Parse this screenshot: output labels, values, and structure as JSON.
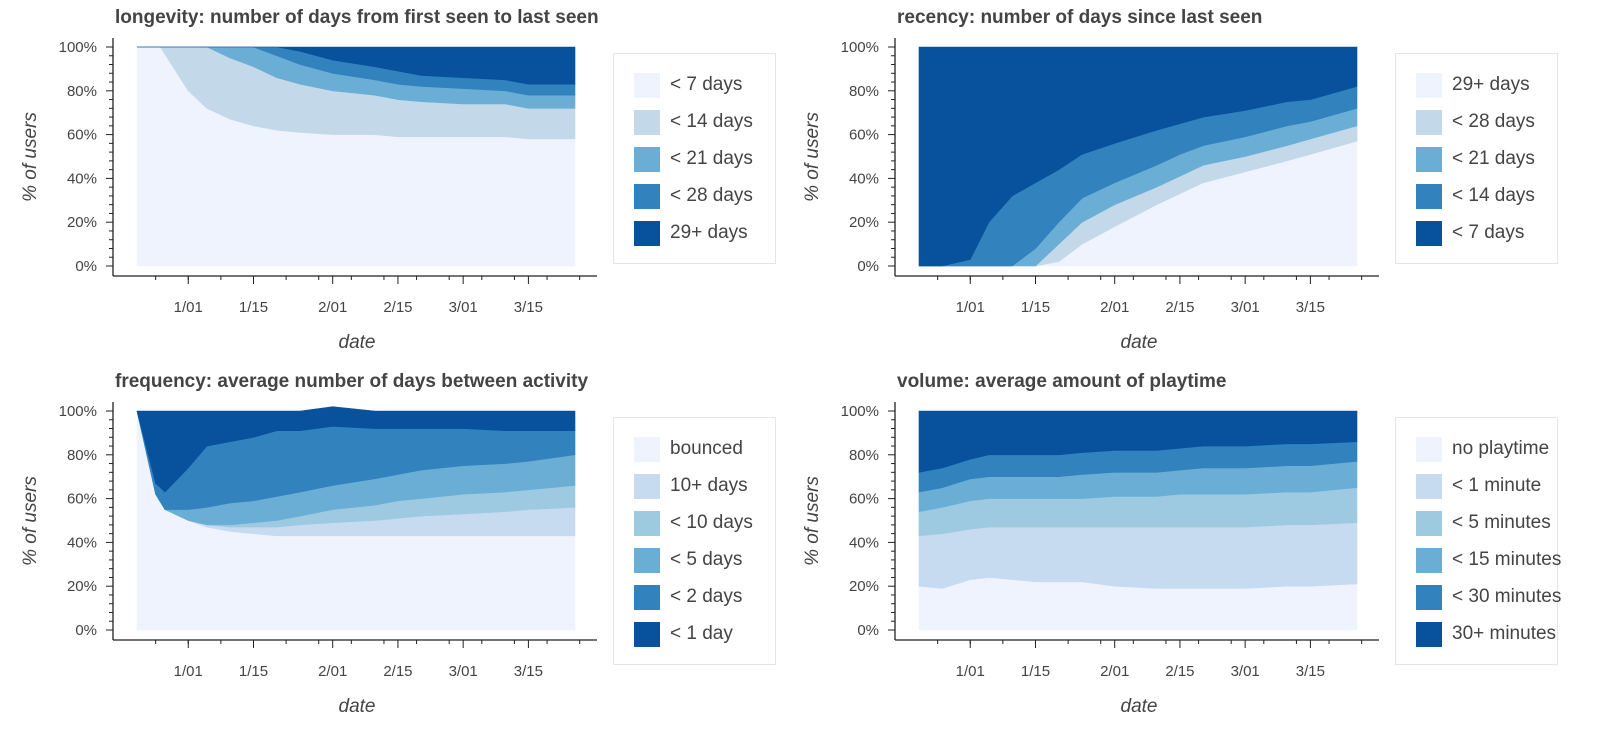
{
  "chart_data": [
    {
      "type": "area",
      "title": "longevity: number of days from first seen to last seen",
      "xlabel": "date",
      "ylabel": "% of users",
      "x": [
        "12/21",
        "12/26",
        "1/01",
        "1/05",
        "1/10",
        "1/15",
        "1/20",
        "1/25",
        "2/01",
        "2/10",
        "2/15",
        "2/20",
        "3/01",
        "3/10",
        "3/15",
        "3/25"
      ],
      "x_ticks": [
        "1/01",
        "1/15",
        "2/01",
        "2/15",
        "3/01",
        "3/15"
      ],
      "y_ticks": [
        "0%",
        "20%",
        "40%",
        "60%",
        "80%",
        "100%"
      ],
      "ylim": [
        0,
        100
      ],
      "series": [
        {
          "name": "< 7 days",
          "color": "#eef3fd",
          "values": [
            100,
            100,
            80,
            72,
            67,
            64,
            62,
            61,
            60,
            60,
            59,
            59,
            59,
            59,
            58,
            58
          ]
        },
        {
          "name": "< 14 days",
          "color": "#c3d9e9",
          "values": [
            0,
            0,
            20,
            28,
            28,
            27,
            24,
            22,
            20,
            18,
            17,
            16,
            15,
            15,
            14,
            14
          ]
        },
        {
          "name": "< 21 days",
          "color": "#6aaed6",
          "values": [
            0,
            0,
            0,
            0,
            5,
            9,
            10,
            9,
            8,
            7,
            7,
            7,
            7,
            6,
            6,
            6
          ]
        },
        {
          "name": "< 28 days",
          "color": "#3182bd",
          "values": [
            0,
            0,
            0,
            0,
            0,
            0,
            4,
            6,
            6,
            6,
            6,
            5,
            5,
            5,
            5,
            5
          ]
        },
        {
          "name": "29+ days",
          "color": "#08519c",
          "values": [
            0,
            0,
            0,
            0,
            0,
            0,
            0,
            2,
            6,
            9,
            11,
            13,
            14,
            15,
            17,
            17
          ]
        }
      ],
      "legend": "right"
    },
    {
      "type": "area",
      "title": "recency: number of days since last seen",
      "xlabel": "date",
      "ylabel": "% of users",
      "x": [
        "12/21",
        "12/26",
        "1/01",
        "1/05",
        "1/10",
        "1/15",
        "1/20",
        "1/25",
        "2/01",
        "2/10",
        "2/15",
        "2/20",
        "3/01",
        "3/10",
        "3/15",
        "3/25"
      ],
      "x_ticks": [
        "1/01",
        "1/15",
        "2/01",
        "2/15",
        "3/01",
        "3/15"
      ],
      "y_ticks": [
        "0%",
        "20%",
        "40%",
        "60%",
        "80%",
        "100%"
      ],
      "ylim": [
        0,
        100
      ],
      "series": [
        {
          "name": "29+ days",
          "color": "#eef3fd",
          "values": [
            0,
            0,
            0,
            0,
            0,
            0,
            2,
            10,
            18,
            28,
            33,
            38,
            43,
            48,
            51,
            57
          ]
        },
        {
          "name": "< 28 days",
          "color": "#c3d9e9",
          "values": [
            0,
            0,
            0,
            0,
            0,
            0,
            8,
            10,
            10,
            8,
            8,
            8,
            7,
            7,
            7,
            7
          ]
        },
        {
          "name": "< 21 days",
          "color": "#6aaed6",
          "values": [
            0,
            0,
            0,
            0,
            0,
            8,
            10,
            11,
            10,
            10,
            10,
            9,
            9,
            9,
            8,
            8
          ]
        },
        {
          "name": "< 14 days",
          "color": "#3182bd",
          "values": [
            0,
            0,
            3,
            20,
            32,
            30,
            24,
            20,
            18,
            16,
            14,
            13,
            12,
            11,
            10,
            10
          ]
        },
        {
          "name": "< 7 days",
          "color": "#08519c",
          "values": [
            100,
            100,
            97,
            80,
            68,
            62,
            56,
            49,
            44,
            38,
            35,
            32,
            29,
            25,
            24,
            18
          ]
        }
      ],
      "legend": "right"
    },
    {
      "type": "area",
      "title": "frequency: average number of days between activity",
      "xlabel": "date",
      "ylabel": "% of users",
      "x": [
        "12/21",
        "12/25",
        "12/27",
        "1/01",
        "1/05",
        "1/10",
        "1/15",
        "1/20",
        "1/25",
        "2/01",
        "2/10",
        "2/15",
        "2/20",
        "3/01",
        "3/10",
        "3/15",
        "3/25"
      ],
      "x_ticks": [
        "1/01",
        "1/15",
        "2/01",
        "2/15",
        "3/01",
        "3/15"
      ],
      "y_ticks": [
        "0%",
        "20%",
        "40%",
        "60%",
        "80%",
        "100%"
      ],
      "ylim": [
        0,
        100
      ],
      "series": [
        {
          "name": "bounced",
          "color": "#eef3fd",
          "values": [
            100,
            62,
            55,
            50,
            47,
            45,
            44,
            43,
            43,
            43,
            43,
            43,
            43,
            43,
            43,
            43,
            43
          ]
        },
        {
          "name": "10+ days",
          "color": "#c6dbef",
          "values": [
            0,
            0,
            0,
            0,
            1,
            2,
            3,
            4,
            5,
            6,
            7,
            8,
            9,
            10,
            11,
            12,
            13
          ]
        },
        {
          "name": "< 10 days",
          "color": "#9ecae1",
          "values": [
            0,
            0,
            0,
            0,
            0,
            1,
            2,
            3,
            4,
            6,
            7,
            8,
            8,
            9,
            9,
            9,
            10
          ]
        },
        {
          "name": "< 5 days",
          "color": "#6aaed6",
          "values": [
            0,
            0,
            0,
            5,
            8,
            10,
            10,
            11,
            11,
            11,
            12,
            12,
            13,
            13,
            13,
            13,
            14
          ]
        },
        {
          "name": "< 2 days",
          "color": "#3182bd",
          "values": [
            0,
            5,
            8,
            19,
            28,
            28,
            29,
            30,
            28,
            27,
            23,
            21,
            19,
            17,
            15,
            14,
            11
          ]
        },
        {
          "name": "< 1 day",
          "color": "#08519c",
          "values": [
            0,
            33,
            37,
            26,
            16,
            14,
            12,
            9,
            9,
            9,
            8,
            8,
            8,
            8,
            9,
            9,
            9
          ]
        }
      ],
      "legend": "right"
    },
    {
      "type": "area",
      "title": "volume: average amount of playtime",
      "xlabel": "date",
      "ylabel": "% of users",
      "x": [
        "12/21",
        "12/26",
        "1/01",
        "1/05",
        "1/10",
        "1/15",
        "1/20",
        "1/25",
        "2/01",
        "2/10",
        "2/15",
        "2/20",
        "3/01",
        "3/10",
        "3/15",
        "3/25"
      ],
      "x_ticks": [
        "1/01",
        "1/15",
        "2/01",
        "2/15",
        "3/01",
        "3/15"
      ],
      "y_ticks": [
        "0%",
        "20%",
        "40%",
        "60%",
        "80%",
        "100%"
      ],
      "ylim": [
        0,
        100
      ],
      "series": [
        {
          "name": "no playtime",
          "color": "#eef3fd",
          "values": [
            20,
            19,
            23,
            24,
            23,
            22,
            22,
            22,
            20,
            19,
            19,
            19,
            19,
            20,
            20,
            21
          ]
        },
        {
          "name": "< 1 minute",
          "color": "#c6dbef",
          "values": [
            23,
            25,
            23,
            23,
            24,
            25,
            25,
            25,
            27,
            28,
            28,
            28,
            28,
            28,
            28,
            28
          ]
        },
        {
          "name": "< 5 minutes",
          "color": "#9ecae1",
          "values": [
            11,
            12,
            13,
            13,
            13,
            13,
            13,
            13,
            14,
            14,
            15,
            15,
            15,
            15,
            15,
            16
          ]
        },
        {
          "name": "< 15 minutes",
          "color": "#6aaed6",
          "values": [
            9,
            9,
            10,
            10,
            10,
            10,
            10,
            11,
            11,
            11,
            11,
            12,
            12,
            12,
            12,
            12
          ]
        },
        {
          "name": "< 30 minutes",
          "color": "#3182bd",
          "values": [
            9,
            9,
            9,
            10,
            10,
            10,
            10,
            10,
            10,
            10,
            10,
            10,
            10,
            10,
            10,
            9
          ]
        },
        {
          "name": "30+ minutes",
          "color": "#08519c",
          "values": [
            28,
            26,
            22,
            20,
            20,
            20,
            20,
            19,
            18,
            18,
            17,
            16,
            16,
            15,
            15,
            14
          ]
        }
      ],
      "legend": "right"
    }
  ]
}
